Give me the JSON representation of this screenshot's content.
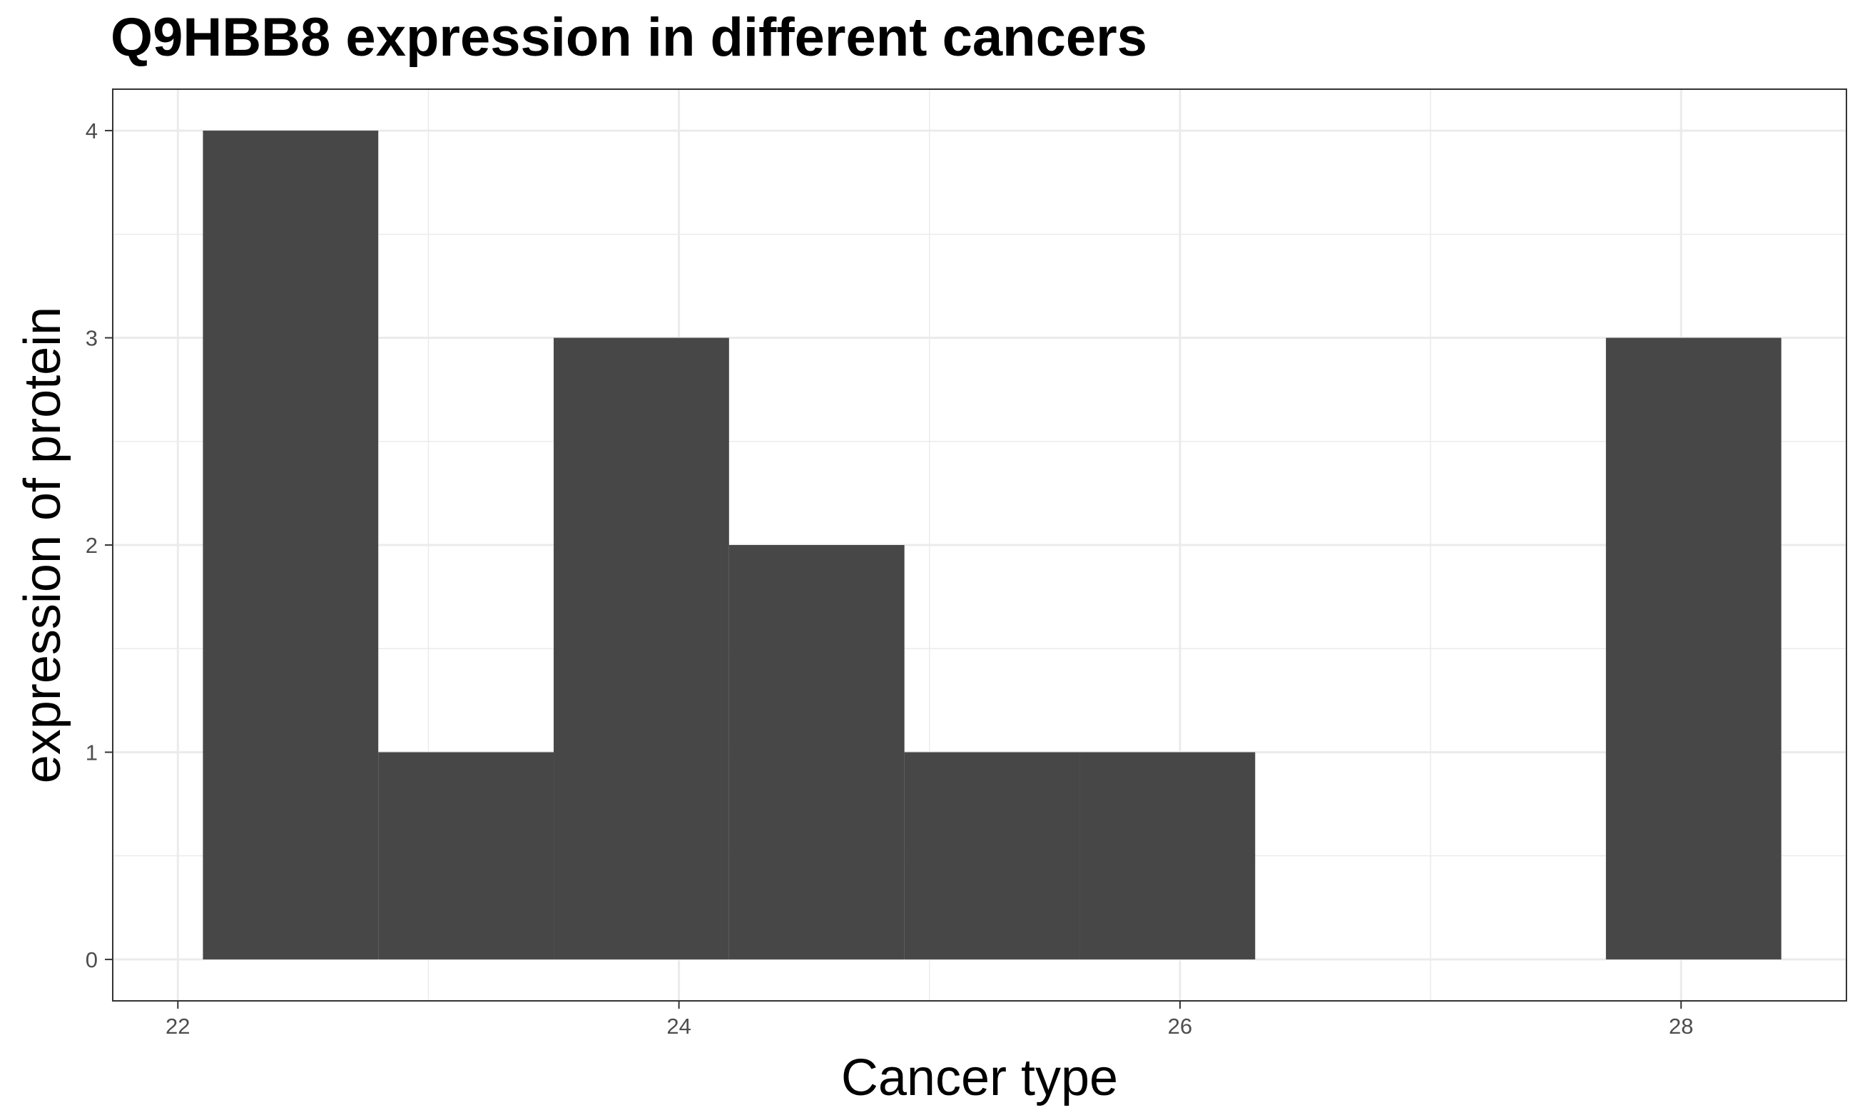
{
  "chart_data": {
    "type": "bar",
    "title": "Q9HBB8 expression in different cancers",
    "xlabel": "Cancer type",
    "ylabel": "expression of protein",
    "bins": [
      {
        "x0": 22.1,
        "x1": 22.8,
        "count": 4
      },
      {
        "x0": 22.8,
        "x1": 23.5,
        "count": 1
      },
      {
        "x0": 23.5,
        "x1": 24.2,
        "count": 3
      },
      {
        "x0": 24.2,
        "x1": 24.9,
        "count": 2
      },
      {
        "x0": 24.9,
        "x1": 25.6,
        "count": 1
      },
      {
        "x0": 25.6,
        "x1": 26.3,
        "count": 1
      },
      {
        "x0": 26.3,
        "x1": 27.0,
        "count": 0
      },
      {
        "x0": 27.0,
        "x1": 27.7,
        "count": 0
      },
      {
        "x0": 27.7,
        "x1": 28.4,
        "count": 3
      }
    ],
    "x_ticks": [
      22,
      24,
      26,
      28
    ],
    "x_tick_labels": [
      "22",
      "24",
      "26",
      "28"
    ],
    "y_ticks": [
      0,
      1,
      2,
      3,
      4
    ],
    "y_tick_labels": [
      "0",
      "1",
      "2",
      "3",
      "4"
    ],
    "xlim": [
      21.74,
      28.66
    ],
    "ylim": [
      -0.2,
      4.2
    ],
    "grid": true,
    "bar_color": "#474747",
    "grid_color": "#ebebeb",
    "background": "#ffffff"
  }
}
